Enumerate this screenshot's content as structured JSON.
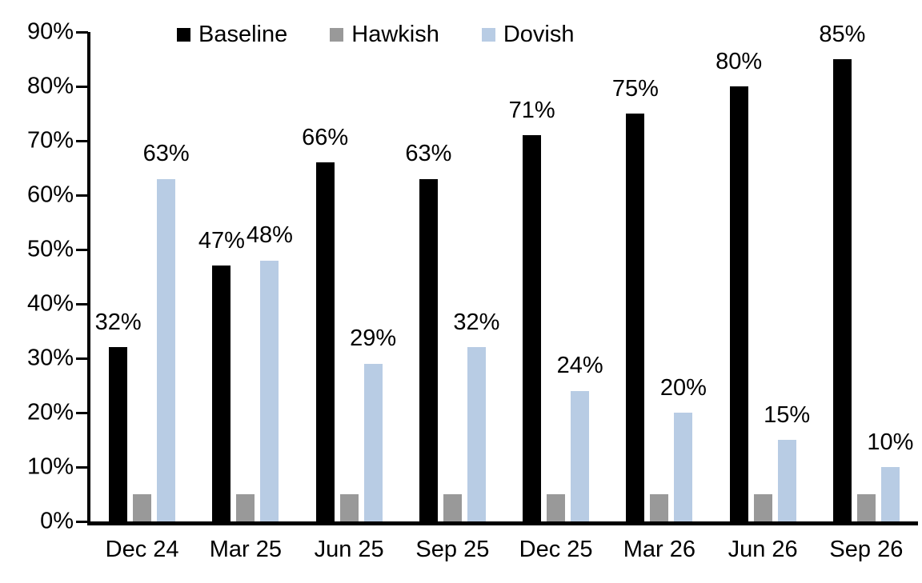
{
  "chart_data": {
    "type": "bar",
    "title": "",
    "categories": [
      "Dec 24",
      "Mar 25",
      "Jun 25",
      "Sep 25",
      "Dec 25",
      "Mar 26",
      "Jun 26",
      "Sep 26"
    ],
    "series": [
      {
        "name": "Baseline",
        "color": "#000000",
        "values": [
          32,
          47,
          66,
          63,
          71,
          75,
          80,
          85
        ],
        "data_labels": [
          "32%",
          "47%",
          "66%",
          "63%",
          "71%",
          "75%",
          "80%",
          "85%"
        ]
      },
      {
        "name": "Hawkish",
        "color": "#999999",
        "values": [
          5,
          5,
          5,
          5,
          5,
          5,
          5,
          5
        ],
        "data_labels": null
      },
      {
        "name": "Dovish",
        "color": "#B8CCE4",
        "values": [
          63,
          48,
          29,
          32,
          24,
          20,
          15,
          10
        ],
        "data_labels": [
          "63%",
          "48%",
          "29%",
          "32%",
          "24%",
          "20%",
          "15%",
          "10%"
        ]
      }
    ],
    "xlabel": "",
    "ylabel": "",
    "ylim": [
      0,
      90
    ],
    "ytick_step": 10,
    "ytick_labels": [
      "0%",
      "10%",
      "20%",
      "30%",
      "40%",
      "50%",
      "60%",
      "70%",
      "80%",
      "90%"
    ],
    "grid": false,
    "legend_position": "top",
    "axis_color": "#000000",
    "background_color": "#ffffff",
    "text_color": "#000000"
  }
}
